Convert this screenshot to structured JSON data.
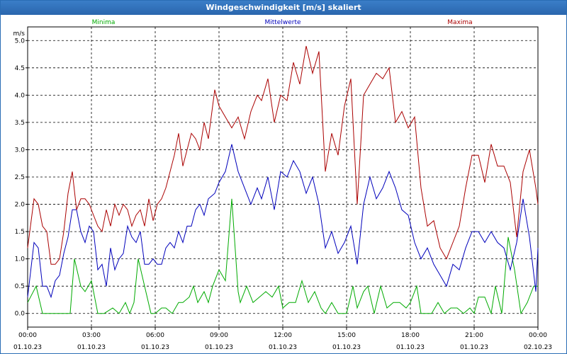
{
  "window": {
    "title": "Windgeschwindigkeit [m/s] skaliert"
  },
  "chart_data": {
    "type": "line",
    "title": "Windgeschwindigkeit [m/s] skaliert",
    "ylabel": "m/s",
    "ylim": [
      -0.25,
      5.25
    ],
    "yticks": [
      "0.0",
      "0.5",
      "1.0",
      "1.5",
      "2.0",
      "2.5",
      "3.0",
      "3.5",
      "4.0",
      "4.5",
      "5.0"
    ],
    "xlim": [
      0,
      24
    ],
    "xticks": [
      {
        "time": "00:00",
        "date": "01.10.23"
      },
      {
        "time": "03:00",
        "date": "01.10.23"
      },
      {
        "time": "06:00",
        "date": "01.10.23"
      },
      {
        "time": "09:00",
        "date": "01.10.23"
      },
      {
        "time": "12:00",
        "date": "01.10.23"
      },
      {
        "time": "15:00",
        "date": "01.10.23"
      },
      {
        "time": "18:00",
        "date": "01.10.23"
      },
      {
        "time": "21:00",
        "date": "01.10.23"
      },
      {
        "time": "00:00",
        "date": "02.10.23"
      }
    ],
    "grid": true,
    "legend_position": "top",
    "series": [
      {
        "name": "Minima",
        "color": "#00aa00",
        "points": [
          [
            0,
            0.2
          ],
          [
            0.4,
            0.5
          ],
          [
            0.7,
            0
          ],
          [
            1,
            0
          ],
          [
            1.5,
            0
          ],
          [
            1.8,
            0
          ],
          [
            2,
            0
          ],
          [
            2.2,
            1
          ],
          [
            2.5,
            0.5
          ],
          [
            2.7,
            0.4
          ],
          [
            3,
            0.6
          ],
          [
            3.3,
            0
          ],
          [
            3.6,
            0
          ],
          [
            4,
            0.1
          ],
          [
            4.3,
            0
          ],
          [
            4.6,
            0.2
          ],
          [
            4.8,
            0
          ],
          [
            5,
            0.2
          ],
          [
            5.2,
            1
          ],
          [
            5.5,
            0.5
          ],
          [
            5.8,
            0
          ],
          [
            6,
            0
          ],
          [
            6.3,
            0.1
          ],
          [
            6.5,
            0.1
          ],
          [
            6.8,
            0
          ],
          [
            7.1,
            0.2
          ],
          [
            7.3,
            0.2
          ],
          [
            7.6,
            0.3
          ],
          [
            7.8,
            0.5
          ],
          [
            8,
            0.2
          ],
          [
            8.3,
            0.4
          ],
          [
            8.5,
            0.2
          ],
          [
            8.7,
            0.5
          ],
          [
            9,
            0.8
          ],
          [
            9.3,
            0.6
          ],
          [
            9.6,
            2.1
          ],
          [
            9.9,
            0.4
          ],
          [
            10,
            0.2
          ],
          [
            10.3,
            0.5
          ],
          [
            10.6,
            0.2
          ],
          [
            10.9,
            0.3
          ],
          [
            11.2,
            0.4
          ],
          [
            11.5,
            0.3
          ],
          [
            11.8,
            0.5
          ],
          [
            12,
            0.1
          ],
          [
            12.3,
            0.2
          ],
          [
            12.6,
            0.2
          ],
          [
            12.9,
            0.6
          ],
          [
            13.2,
            0.2
          ],
          [
            13.5,
            0.4
          ],
          [
            13.8,
            0.1
          ],
          [
            14,
            0
          ],
          [
            14.3,
            0.2
          ],
          [
            14.6,
            0
          ],
          [
            15,
            0
          ],
          [
            15.3,
            0.5
          ],
          [
            15.5,
            0.1
          ],
          [
            15.8,
            0.4
          ],
          [
            16,
            0.5
          ],
          [
            16.3,
            0
          ],
          [
            16.6,
            0.5
          ],
          [
            16.9,
            0.1
          ],
          [
            17.2,
            0.2
          ],
          [
            17.5,
            0.2
          ],
          [
            17.8,
            0.1
          ],
          [
            18,
            0.2
          ],
          [
            18.3,
            0.5
          ],
          [
            18.5,
            0
          ],
          [
            18.8,
            0
          ],
          [
            19,
            0
          ],
          [
            19.3,
            0.2
          ],
          [
            19.6,
            0
          ],
          [
            19.9,
            0.1
          ],
          [
            20.2,
            0.1
          ],
          [
            20.5,
            0
          ],
          [
            20.8,
            0.1
          ],
          [
            21,
            0
          ],
          [
            21.2,
            0.3
          ],
          [
            21.5,
            0.3
          ],
          [
            21.8,
            0
          ],
          [
            22,
            0.5
          ],
          [
            22.3,
            0
          ],
          [
            22.6,
            1.4
          ],
          [
            22.9,
            0.8
          ],
          [
            23.2,
            0
          ],
          [
            23.5,
            0.2
          ],
          [
            23.8,
            0.5
          ],
          [
            24,
            0.5
          ]
        ]
      },
      {
        "name": "Mittelwerte",
        "color": "#0000bb",
        "points": [
          [
            0,
            0.3
          ],
          [
            0.3,
            1.3
          ],
          [
            0.5,
            1.2
          ],
          [
            0.7,
            0.5
          ],
          [
            0.9,
            0.5
          ],
          [
            1.1,
            0.3
          ],
          [
            1.3,
            0.6
          ],
          [
            1.5,
            0.7
          ],
          [
            1.7,
            1.1
          ],
          [
            1.9,
            1.4
          ],
          [
            2.1,
            1.9
          ],
          [
            2.3,
            1.9
          ],
          [
            2.5,
            1.5
          ],
          [
            2.7,
            1.3
          ],
          [
            2.9,
            1.6
          ],
          [
            3.1,
            1.5
          ],
          [
            3.3,
            0.8
          ],
          [
            3.5,
            0.9
          ],
          [
            3.7,
            0.5
          ],
          [
            3.9,
            1.2
          ],
          [
            4.1,
            0.8
          ],
          [
            4.3,
            1.0
          ],
          [
            4.5,
            1.1
          ],
          [
            4.7,
            1.6
          ],
          [
            4.9,
            1.4
          ],
          [
            5.1,
            1.3
          ],
          [
            5.3,
            1.5
          ],
          [
            5.5,
            0.9
          ],
          [
            5.7,
            0.9
          ],
          [
            5.9,
            1.0
          ],
          [
            6.1,
            0.9
          ],
          [
            6.3,
            0.9
          ],
          [
            6.5,
            1.2
          ],
          [
            6.7,
            1.3
          ],
          [
            6.9,
            1.2
          ],
          [
            7.1,
            1.5
          ],
          [
            7.3,
            1.3
          ],
          [
            7.5,
            1.6
          ],
          [
            7.7,
            1.6
          ],
          [
            7.9,
            1.9
          ],
          [
            8.1,
            2.0
          ],
          [
            8.3,
            1.8
          ],
          [
            8.5,
            2.1
          ],
          [
            8.8,
            2.2
          ],
          [
            9,
            2.4
          ],
          [
            9.3,
            2.6
          ],
          [
            9.6,
            3.1
          ],
          [
            9.9,
            2.6
          ],
          [
            10.2,
            2.3
          ],
          [
            10.5,
            2.0
          ],
          [
            10.8,
            2.3
          ],
          [
            11,
            2.1
          ],
          [
            11.3,
            2.5
          ],
          [
            11.6,
            1.9
          ],
          [
            11.9,
            2.6
          ],
          [
            12.2,
            2.5
          ],
          [
            12.5,
            2.8
          ],
          [
            12.8,
            2.6
          ],
          [
            13.1,
            2.2
          ],
          [
            13.4,
            2.5
          ],
          [
            13.7,
            2.0
          ],
          [
            14,
            1.2
          ],
          [
            14.3,
            1.5
          ],
          [
            14.6,
            1.1
          ],
          [
            14.9,
            1.3
          ],
          [
            15.2,
            1.6
          ],
          [
            15.5,
            0.9
          ],
          [
            15.8,
            2.0
          ],
          [
            16.1,
            2.5
          ],
          [
            16.4,
            2.1
          ],
          [
            16.7,
            2.3
          ],
          [
            17,
            2.6
          ],
          [
            17.3,
            2.3
          ],
          [
            17.6,
            1.9
          ],
          [
            17.9,
            1.8
          ],
          [
            18.2,
            1.3
          ],
          [
            18.5,
            1.0
          ],
          [
            18.8,
            1.2
          ],
          [
            19.1,
            0.9
          ],
          [
            19.4,
            0.7
          ],
          [
            19.7,
            0.5
          ],
          [
            20,
            0.9
          ],
          [
            20.3,
            0.8
          ],
          [
            20.6,
            1.2
          ],
          [
            20.9,
            1.5
          ],
          [
            21.2,
            1.5
          ],
          [
            21.5,
            1.3
          ],
          [
            21.8,
            1.5
          ],
          [
            22.1,
            1.3
          ],
          [
            22.4,
            1.2
          ],
          [
            22.7,
            0.8
          ],
          [
            23,
            1.3
          ],
          [
            23.3,
            2.1
          ],
          [
            23.6,
            1.4
          ],
          [
            23.9,
            0.4
          ],
          [
            24,
            1.2
          ]
        ]
      },
      {
        "name": "Maxima",
        "color": "#aa0000",
        "points": [
          [
            0,
            1.2
          ],
          [
            0.3,
            2.1
          ],
          [
            0.5,
            2.0
          ],
          [
            0.7,
            1.6
          ],
          [
            0.9,
            1.5
          ],
          [
            1.1,
            0.9
          ],
          [
            1.3,
            0.9
          ],
          [
            1.5,
            1.0
          ],
          [
            1.7,
            1.5
          ],
          [
            1.9,
            2.2
          ],
          [
            2.1,
            2.6
          ],
          [
            2.3,
            1.9
          ],
          [
            2.5,
            2.1
          ],
          [
            2.7,
            2.1
          ],
          [
            2.9,
            2.0
          ],
          [
            3.1,
            1.8
          ],
          [
            3.3,
            1.6
          ],
          [
            3.5,
            1.5
          ],
          [
            3.7,
            1.9
          ],
          [
            3.9,
            1.6
          ],
          [
            4.1,
            2.0
          ],
          [
            4.3,
            1.8
          ],
          [
            4.5,
            2.0
          ],
          [
            4.7,
            1.9
          ],
          [
            4.9,
            1.6
          ],
          [
            5.1,
            1.8
          ],
          [
            5.3,
            1.9
          ],
          [
            5.5,
            1.6
          ],
          [
            5.7,
            2.1
          ],
          [
            5.9,
            1.7
          ],
          [
            6.1,
            2.0
          ],
          [
            6.3,
            2.1
          ],
          [
            6.5,
            2.3
          ],
          [
            6.7,
            2.6
          ],
          [
            6.9,
            2.9
          ],
          [
            7.1,
            3.3
          ],
          [
            7.3,
            2.7
          ],
          [
            7.5,
            3.0
          ],
          [
            7.7,
            3.3
          ],
          [
            7.9,
            3.2
          ],
          [
            8.1,
            3.0
          ],
          [
            8.3,
            3.5
          ],
          [
            8.5,
            3.2
          ],
          [
            8.8,
            4.1
          ],
          [
            9,
            3.8
          ],
          [
            9.3,
            3.6
          ],
          [
            9.6,
            3.4
          ],
          [
            9.9,
            3.6
          ],
          [
            10.2,
            3.2
          ],
          [
            10.5,
            3.7
          ],
          [
            10.8,
            4.0
          ],
          [
            11,
            3.9
          ],
          [
            11.3,
            4.3
          ],
          [
            11.6,
            3.5
          ],
          [
            11.9,
            4.0
          ],
          [
            12.2,
            3.9
          ],
          [
            12.5,
            4.6
          ],
          [
            12.8,
            4.2
          ],
          [
            13.1,
            4.9
          ],
          [
            13.4,
            4.4
          ],
          [
            13.7,
            4.8
          ],
          [
            14,
            2.6
          ],
          [
            14.3,
            3.3
          ],
          [
            14.6,
            2.9
          ],
          [
            14.9,
            3.8
          ],
          [
            15.2,
            4.3
          ],
          [
            15.5,
            2.0
          ],
          [
            15.8,
            4.0
          ],
          [
            16.1,
            4.2
          ],
          [
            16.4,
            4.4
          ],
          [
            16.7,
            4.3
          ],
          [
            17,
            4.5
          ],
          [
            17.3,
            3.5
          ],
          [
            17.6,
            3.7
          ],
          [
            17.9,
            3.4
          ],
          [
            18.2,
            3.6
          ],
          [
            18.5,
            2.3
          ],
          [
            18.8,
            1.6
          ],
          [
            19.1,
            1.7
          ],
          [
            19.4,
            1.2
          ],
          [
            19.7,
            1.0
          ],
          [
            20,
            1.3
          ],
          [
            20.3,
            1.6
          ],
          [
            20.6,
            2.3
          ],
          [
            20.9,
            2.9
          ],
          [
            21.2,
            2.9
          ],
          [
            21.5,
            2.4
          ],
          [
            21.8,
            3.1
          ],
          [
            22.1,
            2.7
          ],
          [
            22.4,
            2.7
          ],
          [
            22.7,
            2.4
          ],
          [
            23,
            1.4
          ],
          [
            23.3,
            2.6
          ],
          [
            23.6,
            3.0
          ],
          [
            23.9,
            2.3
          ],
          [
            24,
            2.0
          ]
        ]
      }
    ]
  }
}
